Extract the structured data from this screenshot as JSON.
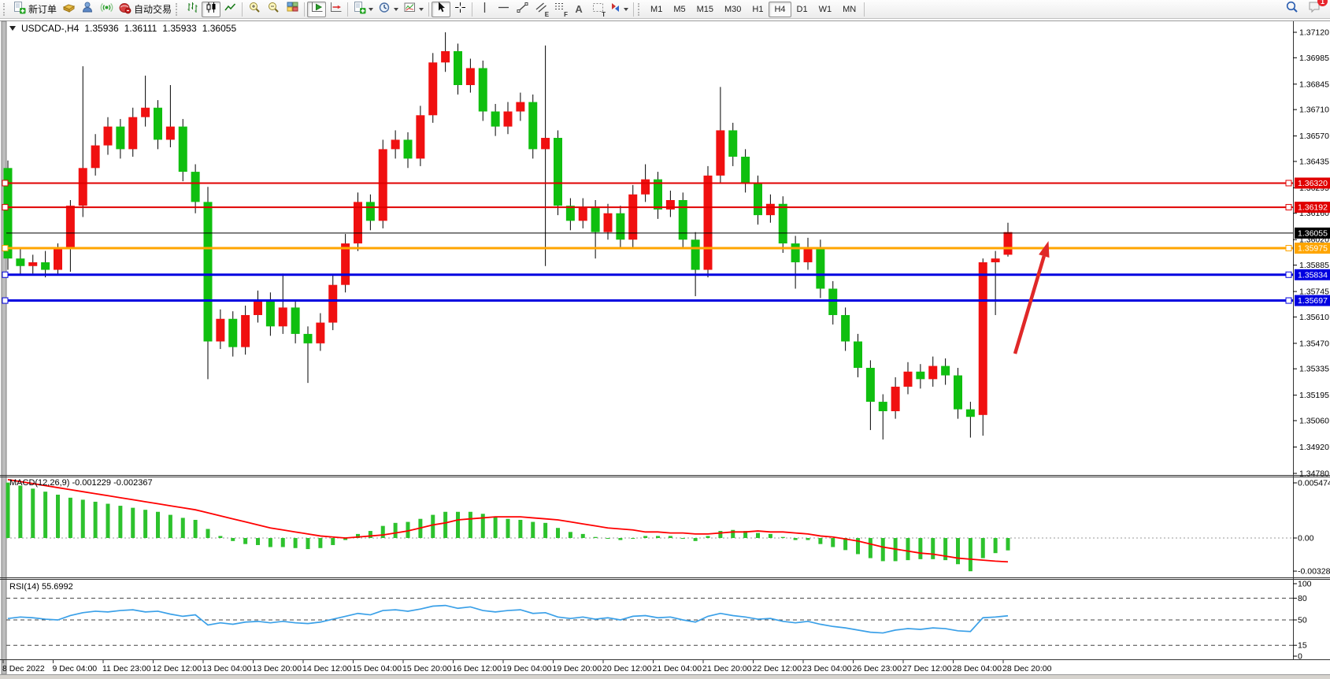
{
  "toolbar": {
    "new_order_label": "新订单",
    "auto_trading_label": "自动交易",
    "glyphs": {
      "channel": "E",
      "fibonacci": "F",
      "text": "A",
      "label": "T"
    },
    "timeframes": [
      "M1",
      "M5",
      "M15",
      "M30",
      "H1",
      "H4",
      "D1",
      "W1",
      "MN"
    ],
    "active_timeframe": "H4",
    "notification_count": "1"
  },
  "chart": {
    "title": {
      "symbol_period": "USDCAD-,H4",
      "open": "1.35936",
      "high": "1.36111",
      "low": "1.35933",
      "close": "1.36055"
    },
    "price_axis_ticks": [
      "1.37120",
      "1.36985",
      "1.36845",
      "1.36710",
      "1.36570",
      "1.36435",
      "1.36295",
      "1.36160",
      "1.36020",
      "1.35885",
      "1.35745",
      "1.35610",
      "1.35470",
      "1.35335",
      "1.35195",
      "1.35060",
      "1.34920",
      "1.34780"
    ],
    "current_price": {
      "value": 1.36055,
      "label": "1.36055",
      "color": "#000000"
    },
    "horizontal_lines": [
      {
        "price": 1.3632,
        "label": "1.36320",
        "color": "#e00000",
        "width": 2
      },
      {
        "price": 1.36192,
        "label": "1.36192",
        "color": "#e00000",
        "width": 2
      },
      {
        "price": 1.35975,
        "label": "1.35975",
        "color": "#ffa500",
        "width": 3
      },
      {
        "price": 1.35834,
        "label": "1.35834",
        "color": "#0000e0",
        "width": 3
      },
      {
        "price": 1.35697,
        "label": "1.35697",
        "color": "#0000e0",
        "width": 3
      }
    ],
    "arrow_annotation": {
      "from": [
        1289,
        449
      ],
      "to": [
        1331.5,
        306
      ],
      "color": "#e02828"
    }
  },
  "chart_data": {
    "type": "candlestick",
    "title": "USDCAD H4",
    "symbol": "USDCAD",
    "period": "H4",
    "price_range": [
      1.3478,
      1.3712
    ],
    "up_color": "#f01010",
    "down_color": "#0fbf0f",
    "wick_color": "#000000",
    "x_axis_labels": [
      "8 Dec 2022",
      "9 Dec 04:00",
      "11 Dec 23:00",
      "12 Dec 12:00",
      "13 Dec 04:00",
      "13 Dec 20:00",
      "14 Dec 12:00",
      "15 Dec 04:00",
      "15 Dec 20:00",
      "16 Dec 12:00",
      "19 Dec 04:00",
      "19 Dec 20:00",
      "20 Dec 12:00",
      "21 Dec 04:00",
      "21 Dec 20:00",
      "22 Dec 12:00",
      "23 Dec 04:00",
      "26 Dec 23:00",
      "27 Dec 12:00",
      "28 Dec 04:00",
      "28 Dec 20:00"
    ],
    "candles_ohlc": [
      [
        1.364,
        1.3644,
        1.3586,
        1.3592
      ],
      [
        1.3592,
        1.3598,
        1.3583,
        1.3588
      ],
      [
        1.3588,
        1.3594,
        1.3584,
        1.359
      ],
      [
        1.359,
        1.3596,
        1.3582,
        1.3586
      ],
      [
        1.3586,
        1.36,
        1.3583,
        1.3597
      ],
      [
        1.3597,
        1.3623,
        1.3585,
        1.362
      ],
      [
        1.362,
        1.3694,
        1.3614,
        1.364
      ],
      [
        1.364,
        1.3658,
        1.3636,
        1.3652
      ],
      [
        1.3652,
        1.3667,
        1.3647,
        1.3662
      ],
      [
        1.3662,
        1.3666,
        1.3645,
        1.365
      ],
      [
        1.365,
        1.3672,
        1.3646,
        1.3667
      ],
      [
        1.3667,
        1.3689,
        1.3662,
        1.3672
      ],
      [
        1.3672,
        1.3676,
        1.365,
        1.3655
      ],
      [
        1.3655,
        1.3684,
        1.3651,
        1.3662
      ],
      [
        1.3662,
        1.3666,
        1.3633,
        1.3638
      ],
      [
        1.3638,
        1.3642,
        1.3616,
        1.3622
      ],
      [
        1.3622,
        1.363,
        1.3528,
        1.3548
      ],
      [
        1.3548,
        1.3565,
        1.3544,
        1.356
      ],
      [
        1.356,
        1.3564,
        1.354,
        1.3545
      ],
      [
        1.3545,
        1.3567,
        1.3541,
        1.3562
      ],
      [
        1.3562,
        1.3575,
        1.3558,
        1.357
      ],
      [
        1.357,
        1.3574,
        1.3551,
        1.3556
      ],
      [
        1.3556,
        1.3584,
        1.3552,
        1.3566
      ],
      [
        1.3566,
        1.357,
        1.3547,
        1.3552
      ],
      [
        1.3552,
        1.3556,
        1.3526,
        1.3547
      ],
      [
        1.3547,
        1.3563,
        1.3543,
        1.3558
      ],
      [
        1.3558,
        1.3583,
        1.3554,
        1.3578
      ],
      [
        1.3578,
        1.3605,
        1.3574,
        1.36
      ],
      [
        1.36,
        1.3627,
        1.3596,
        1.3622
      ],
      [
        1.3622,
        1.3626,
        1.3607,
        1.3612
      ],
      [
        1.3612,
        1.3655,
        1.3608,
        1.365
      ],
      [
        1.365,
        1.366,
        1.3645,
        1.3655
      ],
      [
        1.3655,
        1.3659,
        1.364,
        1.3645
      ],
      [
        1.3645,
        1.3673,
        1.3641,
        1.3668
      ],
      [
        1.3668,
        1.3701,
        1.3664,
        1.3696
      ],
      [
        1.3696,
        1.3712,
        1.3691,
        1.3702
      ],
      [
        1.3702,
        1.3706,
        1.3679,
        1.3684
      ],
      [
        1.3684,
        1.3698,
        1.368,
        1.3693
      ],
      [
        1.3693,
        1.3697,
        1.3665,
        1.367
      ],
      [
        1.367,
        1.3674,
        1.3657,
        1.3662
      ],
      [
        1.3662,
        1.3675,
        1.3658,
        1.367
      ],
      [
        1.367,
        1.368,
        1.3665,
        1.3675
      ],
      [
        1.3675,
        1.3679,
        1.3645,
        1.365
      ],
      [
        1.365,
        1.3705,
        1.3588,
        1.3656
      ],
      [
        1.3656,
        1.366,
        1.3615,
        1.362
      ],
      [
        1.362,
        1.3624,
        1.3607,
        1.3612
      ],
      [
        1.3612,
        1.3624,
        1.3608,
        1.3619
      ],
      [
        1.3619,
        1.3623,
        1.3592,
        1.3606
      ],
      [
        1.3606,
        1.3621,
        1.3602,
        1.3616
      ],
      [
        1.3616,
        1.362,
        1.3597,
        1.3602
      ],
      [
        1.3602,
        1.3631,
        1.3598,
        1.3626
      ],
      [
        1.3626,
        1.3642,
        1.3622,
        1.3634
      ],
      [
        1.3634,
        1.3638,
        1.3613,
        1.3618
      ],
      [
        1.3618,
        1.3628,
        1.3614,
        1.3623
      ],
      [
        1.3623,
        1.3627,
        1.3597,
        1.3602
      ],
      [
        1.3602,
        1.3606,
        1.3572,
        1.3586
      ],
      [
        1.3586,
        1.3641,
        1.3582,
        1.3636
      ],
      [
        1.3636,
        1.3683,
        1.3632,
        1.366
      ],
      [
        1.366,
        1.3664,
        1.3641,
        1.3646
      ],
      [
        1.3646,
        1.365,
        1.3627,
        1.3632
      ],
      [
        1.3632,
        1.3636,
        1.361,
        1.3615
      ],
      [
        1.3615,
        1.3626,
        1.3611,
        1.3621
      ],
      [
        1.3621,
        1.3625,
        1.3595,
        1.36
      ],
      [
        1.36,
        1.3604,
        1.3576,
        1.359
      ],
      [
        1.359,
        1.3603,
        1.3586,
        1.3598
      ],
      [
        1.3598,
        1.3602,
        1.3571,
        1.3576
      ],
      [
        1.3576,
        1.358,
        1.3557,
        1.3562
      ],
      [
        1.3562,
        1.3566,
        1.3543,
        1.3548
      ],
      [
        1.3548,
        1.3552,
        1.3529,
        1.3534
      ],
      [
        1.3534,
        1.3538,
        1.3501,
        1.3516
      ],
      [
        1.3516,
        1.352,
        1.3496,
        1.3511
      ],
      [
        1.3511,
        1.3529,
        1.3507,
        1.3524
      ],
      [
        1.3524,
        1.3537,
        1.352,
        1.3532
      ],
      [
        1.3532,
        1.3536,
        1.3523,
        1.3528
      ],
      [
        1.3528,
        1.354,
        1.3524,
        1.3535
      ],
      [
        1.3535,
        1.3539,
        1.3525,
        1.353
      ],
      [
        1.353,
        1.3534,
        1.3507,
        1.3512
      ],
      [
        1.3512,
        1.3516,
        1.3497,
        1.3508
      ],
      [
        1.3509,
        1.3592,
        1.3498,
        1.359
      ],
      [
        1.359,
        1.3596,
        1.3562,
        1.3592
      ],
      [
        1.3594,
        1.3611,
        1.3593,
        1.3606
      ]
    ],
    "indicators": [
      {
        "name": "MACD",
        "params": "12,26,9",
        "label": "MACD(12,26,9) -0.001229 -0.002367",
        "macd_value": -0.001229,
        "signal_value": -0.002367,
        "axis_ticks": [
          "0.005474",
          "0.00",
          "-0.003289"
        ],
        "histogram_color": "#2dc22d",
        "signal_color": "#ff0000",
        "histogram": [
          0.0055,
          0.0052,
          0.0049,
          0.0046,
          0.0043,
          0.004,
          0.0038,
          0.0036,
          0.0034,
          0.0032,
          0.003,
          0.0028,
          0.0026,
          0.0023,
          0.002,
          0.0018,
          0.0009,
          0.0002,
          -0.0003,
          -0.0006,
          -0.0007,
          -0.0009,
          -0.0009,
          -0.001,
          -0.0011,
          -0.001,
          -0.0007,
          -0.0002,
          0.0004,
          0.0007,
          0.0012,
          0.0015,
          0.0016,
          0.0019,
          0.0023,
          0.0026,
          0.0026,
          0.0026,
          0.0024,
          0.0021,
          0.0019,
          0.0018,
          0.0016,
          0.0015,
          0.001,
          0.0006,
          0.0004,
          0.0001,
          0.0,
          -0.0002,
          0.0,
          0.0002,
          0.0002,
          0.0002,
          0.0,
          -0.0003,
          0.0002,
          0.0007,
          0.0008,
          0.0007,
          0.0005,
          0.0004,
          0.0001,
          -0.0002,
          -0.0002,
          -0.0006,
          -0.0009,
          -0.0012,
          -0.0016,
          -0.002,
          -0.0023,
          -0.0023,
          -0.0022,
          -0.0021,
          -0.0021,
          -0.0022,
          -0.0026,
          -0.0033,
          -0.002,
          -0.0015,
          -0.001229
        ],
        "signal": [
          0.0058,
          0.0056,
          0.0054,
          0.0052,
          0.005,
          0.0048,
          0.0046,
          0.0044,
          0.0042,
          0.004,
          0.0038,
          0.0036,
          0.0034,
          0.0032,
          0.003,
          0.0028,
          0.0025,
          0.0022,
          0.0019,
          0.0016,
          0.0013,
          0.001,
          0.0008,
          0.0006,
          0.0004,
          0.0002,
          0.0001,
          0.0,
          0.0001,
          0.0002,
          0.0003,
          0.0005,
          0.0007,
          0.001,
          0.0013,
          0.0015,
          0.0018,
          0.0019,
          0.002,
          0.0021,
          0.0021,
          0.0021,
          0.002,
          0.0019,
          0.0018,
          0.0016,
          0.0014,
          0.0012,
          0.001,
          0.0009,
          0.0008,
          0.0006,
          0.0006,
          0.0005,
          0.0005,
          0.0004,
          0.0004,
          0.0005,
          0.0006,
          0.0006,
          0.0007,
          0.0006,
          0.0006,
          0.0005,
          0.0004,
          0.0002,
          0.0001,
          -0.0001,
          -0.0003,
          -0.0006,
          -0.0009,
          -0.0011,
          -0.0013,
          -0.0015,
          -0.0016,
          -0.0018,
          -0.002,
          -0.0021,
          -0.0022,
          -0.0023,
          -0.002367
        ]
      },
      {
        "name": "RSI",
        "params": "14",
        "label": "RSI(14) 55.6992",
        "value": 55.6992,
        "axis_ticks": [
          "100",
          "80",
          "50",
          "15",
          "0"
        ],
        "levels": [
          80,
          50,
          15
        ],
        "line_color": "#3aa0e8",
        "values": [
          52,
          54,
          53,
          51,
          50,
          56,
          60,
          62,
          61,
          63,
          64,
          61,
          62,
          58,
          55,
          57,
          43,
          46,
          44,
          47,
          48,
          46,
          48,
          46,
          45,
          47,
          51,
          55,
          59,
          57,
          63,
          64,
          62,
          65,
          69,
          70,
          66,
          68,
          63,
          61,
          63,
          64,
          59,
          60,
          54,
          52,
          54,
          51,
          53,
          50,
          55,
          56,
          53,
          54,
          50,
          47,
          55,
          59,
          56,
          54,
          51,
          52,
          48,
          46,
          48,
          44,
          41,
          39,
          36,
          33,
          32,
          36,
          38,
          37,
          39,
          38,
          35,
          34,
          53,
          54,
          55.6992
        ]
      }
    ]
  }
}
